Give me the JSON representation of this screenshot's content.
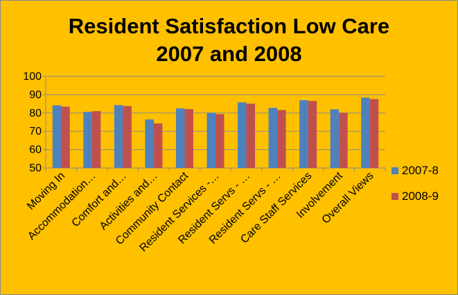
{
  "chart_data": {
    "type": "bar",
    "title_line1": "Resident Satisfaction Low Care",
    "title_line2": "2007 and 2008",
    "categories": [
      "Moving In",
      "Accommodation…",
      "Comfort and…",
      "Activities and…",
      "Community Contact",
      "Resident Services -…",
      "Resident Servs - …",
      "Resident Servs - …",
      "Care Staff Services",
      "Involvement",
      "Overall Views"
    ],
    "series": [
      {
        "name": "2007-8",
        "color": "#4F81BD",
        "values": [
          84.2,
          80.6,
          84.3,
          76.5,
          82.5,
          80.1,
          85.8,
          82.8,
          87.0,
          82.0,
          88.4
        ]
      },
      {
        "name": "2008-9",
        "color": "#C0504D",
        "values": [
          83.5,
          81.0,
          83.8,
          74.3,
          82.1,
          79.4,
          85.1,
          81.6,
          86.6,
          80.1,
          87.6
        ]
      }
    ],
    "ylim": [
      50,
      100
    ],
    "yticks": [
      50,
      60,
      70,
      80,
      90,
      100
    ],
    "grid": true,
    "legend": "right",
    "category_labels_rotated": true
  }
}
